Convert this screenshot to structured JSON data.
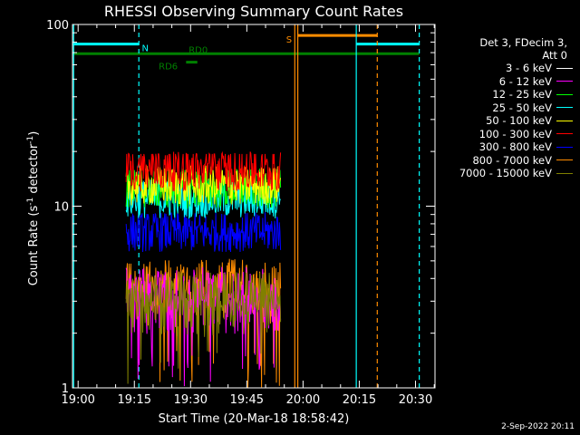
{
  "chart_data": {
    "type": "line",
    "title": "RHESSI Observing Summary Count Rates",
    "xlabel": "Start Time (20-Mar-18 18:58:42)",
    "ylabel_main": "Count Rate (s",
    "ylabel_sup1": "-1",
    "ylabel_mid": " detector",
    "ylabel_sup2": "-1",
    "ylabel_end": ")",
    "y_scale": "log",
    "ylim": [
      1,
      100
    ],
    "xlim_minutes": [
      -1.5,
      95.2
    ],
    "x_ticks": [
      {
        "minute": 0,
        "label": "19:00"
      },
      {
        "minute": 15,
        "label": "19:15"
      },
      {
        "minute": 30,
        "label": "19:30"
      },
      {
        "minute": 45,
        "label": "19:45"
      },
      {
        "minute": 60,
        "label": "20:00"
      },
      {
        "minute": 75,
        "label": "20:15"
      },
      {
        "minute": 90,
        "label": "20:30"
      }
    ],
    "y_ticks": [
      {
        "value": 1,
        "label": "1"
      },
      {
        "value": 10,
        "label": "10"
      },
      {
        "value": 100,
        "label": "100"
      }
    ],
    "data_interval_minutes": [
      12.8,
      54.0
    ],
    "series": [
      {
        "name": "3 - 6 keV",
        "color": "#ffffff",
        "level": null
      },
      {
        "name": "6 - 12 keV",
        "color": "#ff00ff",
        "level": 3.6
      },
      {
        "name": "12 - 25 keV",
        "color": "#00ff00",
        "level": 12.5
      },
      {
        "name": "25 - 50 keV",
        "color": "#00ffff",
        "level": 11.0
      },
      {
        "name": "50 - 100 keV",
        "color": "#ffff00",
        "level": 13.0
      },
      {
        "name": "100 - 300 keV",
        "color": "#ff0000",
        "level": 15.5
      },
      {
        "name": "300 - 800 keV",
        "color": "#0000ff",
        "level": 7.2
      },
      {
        "name": "800 - 7000 keV",
        "color": "#ff8c00",
        "level": 4.0
      },
      {
        "name": "7000 - 15000 keV",
        "color": "#808000",
        "level": 3.4
      }
    ],
    "legend_header": "Det 3, FDecim 3,\nAtt 0",
    "flags": [
      {
        "label": "N",
        "color": "#00ffff",
        "y_value": 78,
        "segments": [
          [
            -1.5,
            16.2
          ],
          [
            74.2,
            91.0
          ]
        ],
        "label_minute": 17.0
      },
      {
        "label": "S",
        "color": "#ff8c00",
        "y_value": 87,
        "segments": [
          [
            58.5,
            79.8
          ]
        ],
        "label_minute": 55.5
      },
      {
        "label": "RD0",
        "color": "#008000",
        "y_value": 69,
        "segments": [
          [
            -1.5,
            91.0
          ]
        ],
        "label_minute": 29.5
      },
      {
        "label": "RD6",
        "color": "#008000",
        "y_value": 62,
        "segments": [
          [
            28.8,
            31.8
          ]
        ],
        "label_minute": 21.5
      }
    ],
    "vertical_lines": [
      {
        "minute": -1.2,
        "color": "#00ffff",
        "dashed": false
      },
      {
        "minute": 16.2,
        "color": "#00ffff",
        "dashed": true
      },
      {
        "minute": 57.8,
        "color": "#ff8c00",
        "dashed": false
      },
      {
        "minute": 58.6,
        "color": "#ff8c00",
        "dashed": false
      },
      {
        "minute": 74.2,
        "color": "#00ffff",
        "dashed": false
      },
      {
        "minute": 79.8,
        "color": "#ff8c00",
        "dashed": true
      },
      {
        "minute": 91.0,
        "color": "#00ffff",
        "dashed": true
      }
    ],
    "grid": false,
    "legend_position": "right"
  },
  "timestamp": "2-Sep-2022 20:11"
}
